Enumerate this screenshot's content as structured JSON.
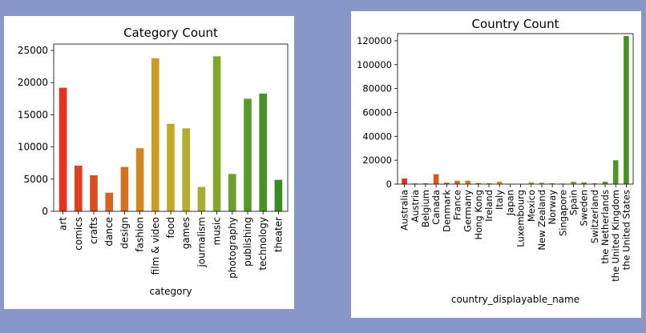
{
  "chart_data": [
    {
      "type": "bar",
      "title": "Category Count",
      "xlabel": "category",
      "ylabel": "",
      "ylim": [
        0,
        26000
      ],
      "yticks": [
        0,
        5000,
        10000,
        15000,
        20000,
        25000
      ],
      "categories": [
        "art",
        "comics",
        "crafts",
        "dance",
        "design",
        "fashion",
        "film & video",
        "food",
        "games",
        "journalism",
        "music",
        "photography",
        "publishing",
        "technology",
        "theater"
      ],
      "values": [
        19200,
        7100,
        5600,
        2900,
        6900,
        9800,
        23800,
        13600,
        12900,
        3800,
        24100,
        5800,
        17500,
        18300,
        4900
      ],
      "colors": [
        "#e8311f",
        "#e0401f",
        "#dd4e1f",
        "#d9621f",
        "#d4711f",
        "#d0871f",
        "#cd9d22",
        "#c2a928",
        "#b4ae2e",
        "#a5ae32",
        "#83a72e",
        "#6ba02b",
        "#579a28",
        "#489225",
        "#3c8b22"
      ],
      "grid": false,
      "legend": "none"
    },
    {
      "type": "bar",
      "title": "Country Count",
      "xlabel": "country_displayable_name",
      "ylabel": "",
      "ylim": [
        0,
        126000
      ],
      "yticks": [
        0,
        20000,
        40000,
        60000,
        80000,
        100000,
        120000
      ],
      "categories": [
        "Australia",
        "Austria",
        "Belgium",
        "Canada",
        "Denmark",
        "France",
        "Germany",
        "Hong Kong",
        "Ireland",
        "Italy",
        "Japan",
        "Luxembourg",
        "Mexico",
        "New Zealand",
        "Norway",
        "Singapore",
        "Spain",
        "Sweden",
        "Switzerland",
        "the Netherlands",
        "the United Kingdom",
        "the United States"
      ],
      "values": [
        4700,
        500,
        600,
        8300,
        1200,
        2800,
        2900,
        1000,
        800,
        2100,
        100,
        100,
        1600,
        1200,
        700,
        500,
        2000,
        1500,
        700,
        2000,
        20000,
        124000
      ],
      "colors": [
        "#e8311f",
        "#e33d1f",
        "#df491f",
        "#dc561f",
        "#d8611f",
        "#d46d1f",
        "#d0791f",
        "#cc851f",
        "#c8911f",
        "#c59d22",
        "#bea627",
        "#b5ab2c",
        "#acad2f",
        "#a1ae31",
        "#95ab31",
        "#89a82f",
        "#7da52e",
        "#71a22c",
        "#669f2a",
        "#5b9b28",
        "#509726",
        "#469225"
      ],
      "grid": false,
      "legend": "none"
    }
  ]
}
